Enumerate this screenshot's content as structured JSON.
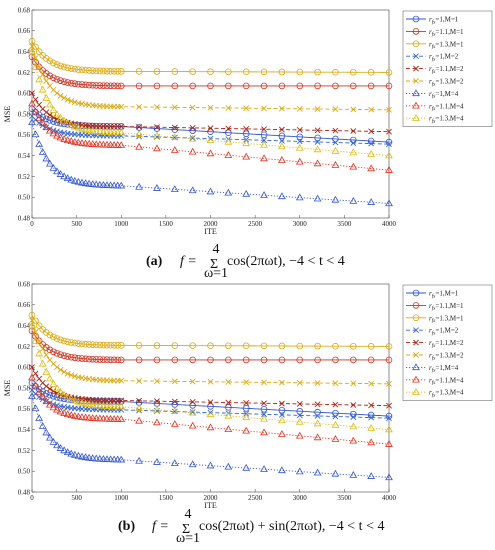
{
  "chart_data": [
    {
      "type": "line",
      "panel_label": "(a)",
      "caption_math": {
        "lhs": "f =",
        "sum_top": "4",
        "sum_bottom": "ω=1",
        "body": "cos(2πωt), −4 < t < 4"
      },
      "xlabel": "ITE",
      "ylabel": "MSE",
      "xlim": [
        0,
        4000
      ],
      "ylim": [
        0.48,
        0.68
      ],
      "xticks": [
        0,
        500,
        1000,
        1500,
        2000,
        2500,
        3000,
        3500,
        4000
      ],
      "yticks": [
        0.48,
        0.5,
        0.52,
        0.54,
        0.56,
        0.58,
        0.6,
        0.62,
        0.64,
        0.66,
        0.68
      ],
      "grid": false,
      "legend_position": "top-right",
      "series": [
        {
          "label_main": "r",
          "label_sub": "fs",
          "label_rest": "=1,M=1",
          "color": "#3355cc",
          "marker": "circle",
          "dash": "solid",
          "start": 0.585,
          "mid": 0.568,
          "end": 0.553
        },
        {
          "label_main": "r",
          "label_sub": "fs",
          "label_rest": "=1.1,M=1",
          "color": "#cc3322",
          "marker": "circle",
          "dash": "solid",
          "start": 0.635,
          "mid": 0.607,
          "end": 0.607
        },
        {
          "label_main": "r",
          "label_sub": "fs",
          "label_rest": "=1.3,M=1",
          "color": "#ddaa11",
          "marker": "circle",
          "dash": "solid",
          "start": 0.65,
          "mid": 0.621,
          "end": 0.62
        },
        {
          "label_main": "r",
          "label_sub": "fs",
          "label_rest": "=1,M=2",
          "color": "#3366cc",
          "marker": "x",
          "dash": "dashed",
          "start": 0.578,
          "mid": 0.559,
          "end": 0.551
        },
        {
          "label_main": "r",
          "label_sub": "fs",
          "label_rest": "=1.1,M=2",
          "color": "#aa2211",
          "marker": "x",
          "dash": "dashed",
          "start": 0.6,
          "mid": 0.568,
          "end": 0.563
        },
        {
          "label_main": "r",
          "label_sub": "fs",
          "label_rest": "=1.3,M=2",
          "color": "#ddaa11",
          "marker": "x",
          "dash": "dashed",
          "start": 0.645,
          "mid": 0.587,
          "end": 0.584
        },
        {
          "label_main": "r",
          "label_sub": "fs",
          "label_rest": "=1,M=4",
          "color": "#3355cc",
          "marker": "triangle",
          "dash": "dotted",
          "start": 0.572,
          "mid": 0.511,
          "end": 0.494
        },
        {
          "label_main": "r",
          "label_sub": "fs",
          "label_rest": "=1.1,M=4",
          "color": "#dd3322",
          "marker": "triangle",
          "dash": "dotted",
          "start": 0.59,
          "mid": 0.55,
          "end": 0.526
        },
        {
          "label_main": "r",
          "label_sub": "fs",
          "label_rest": "=1.3,M=4",
          "color": "#ddbb11",
          "marker": "triangle",
          "dash": "dotted",
          "start": 0.64,
          "mid": 0.562,
          "end": 0.54
        }
      ]
    },
    {
      "type": "line",
      "panel_label": "(b)",
      "caption_math": {
        "lhs": "f =",
        "sum_top": "4",
        "sum_bottom": "ω=1",
        "body": "cos(2πωt) + sin(2πωt), −4 < t < 4"
      },
      "xlabel": "ITE",
      "ylabel": "MSE",
      "xlim": [
        0,
        4000
      ],
      "ylim": [
        0.48,
        0.68
      ],
      "xticks": [
        0,
        500,
        1000,
        1500,
        2000,
        2500,
        3000,
        3500,
        4000
      ],
      "yticks": [
        0.48,
        0.5,
        0.52,
        0.54,
        0.56,
        0.58,
        0.6,
        0.62,
        0.64,
        0.66,
        0.68
      ],
      "grid": false,
      "legend_position": "top-right",
      "series": [
        {
          "label_main": "r",
          "label_sub": "fs",
          "label_rest": "=1,M=1",
          "color": "#3355cc",
          "marker": "circle",
          "dash": "solid",
          "start": 0.585,
          "mid": 0.567,
          "end": 0.553
        },
        {
          "label_main": "r",
          "label_sub": "fs",
          "label_rest": "=1.1,M=1",
          "color": "#cc3322",
          "marker": "circle",
          "dash": "solid",
          "start": 0.635,
          "mid": 0.607,
          "end": 0.607
        },
        {
          "label_main": "r",
          "label_sub": "fs",
          "label_rest": "=1.3,M=1",
          "color": "#ddaa11",
          "marker": "circle",
          "dash": "solid",
          "start": 0.65,
          "mid": 0.621,
          "end": 0.62
        },
        {
          "label_main": "r",
          "label_sub": "fs",
          "label_rest": "=1,M=2",
          "color": "#3366cc",
          "marker": "x",
          "dash": "dashed",
          "start": 0.578,
          "mid": 0.559,
          "end": 0.551
        },
        {
          "label_main": "r",
          "label_sub": "fs",
          "label_rest": "=1.1,M=2",
          "color": "#aa2211",
          "marker": "x",
          "dash": "dashed",
          "start": 0.6,
          "mid": 0.568,
          "end": 0.563
        },
        {
          "label_main": "r",
          "label_sub": "fs",
          "label_rest": "=1.3,M=2",
          "color": "#ddaa11",
          "marker": "x",
          "dash": "dashed",
          "start": 0.645,
          "mid": 0.587,
          "end": 0.584
        },
        {
          "label_main": "r",
          "label_sub": "fs",
          "label_rest": "=1,M=4",
          "color": "#3355cc",
          "marker": "triangle",
          "dash": "dotted",
          "start": 0.572,
          "mid": 0.511,
          "end": 0.494
        },
        {
          "label_main": "r",
          "label_sub": "fs",
          "label_rest": "=1.1,M=4",
          "color": "#dd3322",
          "marker": "triangle",
          "dash": "dotted",
          "start": 0.59,
          "mid": 0.55,
          "end": 0.526
        },
        {
          "label_main": "r",
          "label_sub": "fs",
          "label_rest": "=1.3,M=4",
          "color": "#ddbb11",
          "marker": "triangle",
          "dash": "dotted",
          "start": 0.64,
          "mid": 0.562,
          "end": 0.54
        }
      ]
    }
  ]
}
